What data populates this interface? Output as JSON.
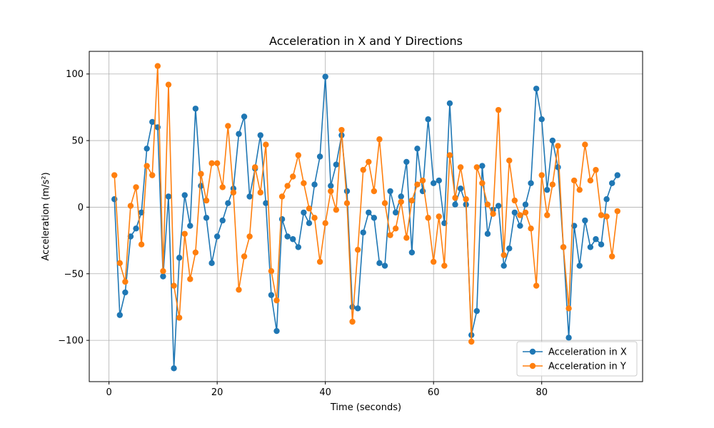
{
  "chart_data": {
    "type": "line",
    "title": "Acceleration in X and Y Directions",
    "xlabel": "Time (seconds)",
    "ylabel": "Acceleration (m/s²)",
    "xlim": [
      -3.65,
      98.65
    ],
    "ylim": [
      -131,
      117
    ],
    "xticks": [
      0,
      20,
      40,
      60,
      80
    ],
    "yticks": [
      -100,
      -50,
      0,
      50,
      100
    ],
    "grid": true,
    "legend_position": "bottom-right",
    "x": [
      1,
      2,
      3,
      4,
      5,
      6,
      7,
      8,
      9,
      10,
      11,
      12,
      13,
      14,
      15,
      16,
      17,
      18,
      19,
      20,
      21,
      22,
      23,
      24,
      25,
      26,
      27,
      28,
      29,
      30,
      31,
      32,
      33,
      34,
      35,
      36,
      37,
      38,
      39,
      40,
      41,
      42,
      43,
      44,
      45,
      46,
      47,
      48,
      49,
      50,
      51,
      52,
      53,
      54,
      55,
      56,
      57,
      58,
      59,
      60,
      61,
      62,
      63,
      64,
      65,
      66,
      67,
      68,
      69,
      70,
      71,
      72,
      73,
      74,
      75,
      76,
      77,
      78,
      79,
      80,
      81,
      82,
      83,
      84,
      85,
      86,
      87,
      88,
      89,
      90,
      91,
      92,
      93,
      94
    ],
    "series": [
      {
        "name": "Acceleration in X",
        "color": "#1f77b4",
        "values": [
          6,
          -81,
          -64,
          -22,
          -16,
          -4,
          44,
          64,
          60,
          -52,
          8,
          -121,
          -38,
          9,
          -14,
          74,
          16,
          -8,
          -42,
          -22,
          -10,
          3,
          14,
          55,
          68,
          8,
          29,
          54,
          3,
          -66,
          -93,
          -9,
          -22,
          -24,
          -30,
          -4,
          -12,
          17,
          38,
          98,
          16,
          32,
          54,
          12,
          -75,
          -76,
          -19,
          -4,
          -8,
          -42,
          -44,
          12,
          -4,
          8,
          34,
          -34,
          44,
          12,
          66,
          18,
          20,
          -12,
          78,
          2,
          14,
          2,
          -96,
          -78,
          31,
          -20,
          -2,
          1,
          -44,
          -31,
          -4,
          -14,
          2,
          18,
          89,
          66,
          13,
          50,
          30,
          -30,
          -98,
          -14,
          -44,
          -10,
          -30,
          -24,
          -28,
          6,
          18,
          24
        ]
      },
      {
        "name": "Acceleration in Y",
        "color": "#ff7f0e",
        "values": [
          24,
          -42,
          -56,
          1,
          15,
          -28,
          31,
          24,
          106,
          -48,
          92,
          -59,
          -83,
          -20,
          -54,
          -34,
          25,
          5,
          33,
          33,
          15,
          61,
          11,
          -62,
          -37,
          -22,
          30,
          11,
          47,
          -48,
          -70,
          8,
          16,
          23,
          39,
          18,
          -1,
          -8,
          -41,
          -12,
          12,
          -2,
          58,
          3,
          -86,
          -32,
          28,
          34,
          12,
          51,
          3,
          -21,
          -16,
          4,
          -23,
          5,
          17,
          20,
          -8,
          -41,
          -7,
          -44,
          39,
          7,
          30,
          6,
          -101,
          30,
          18,
          2,
          -5,
          73,
          -36,
          35,
          5,
          -6,
          -4,
          -16,
          -59,
          24,
          -6,
          17,
          46,
          -30,
          -76,
          20,
          13,
          47,
          20,
          28,
          -6,
          -7,
          -37,
          -3
        ]
      }
    ]
  }
}
